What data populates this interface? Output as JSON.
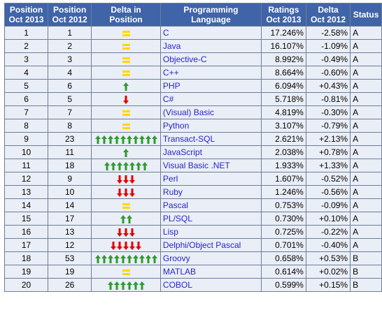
{
  "headers": {
    "pos2013": [
      "Position",
      "Oct 2013"
    ],
    "pos2012": [
      "Position",
      "Oct 2012"
    ],
    "deltapos": "Delta in Position",
    "lang": "Programming Language",
    "ratings": [
      "Ratings",
      "Oct 2013"
    ],
    "delta": [
      "Delta",
      "Oct 2012"
    ],
    "status": "Status"
  },
  "colors": {
    "up": "#2f9a2f",
    "down": "#e00000",
    "equal": "#ffd800",
    "header_bg": "#3f64a7",
    "link": "#2626c9"
  },
  "rows": [
    {
      "pos2013": "1",
      "pos2012": "1",
      "change": "equal",
      "count": 0,
      "lang": "C",
      "rating": "17.246%",
      "delta": "-2.58%",
      "status": "A"
    },
    {
      "pos2013": "2",
      "pos2012": "2",
      "change": "equal",
      "count": 0,
      "lang": "Java",
      "rating": "16.107%",
      "delta": "-1.09%",
      "status": "A"
    },
    {
      "pos2013": "3",
      "pos2012": "3",
      "change": "equal",
      "count": 0,
      "lang": "Objective-C",
      "rating": "8.992%",
      "delta": "-0.49%",
      "status": "A"
    },
    {
      "pos2013": "4",
      "pos2012": "4",
      "change": "equal",
      "count": 0,
      "lang": "C++",
      "rating": "8.664%",
      "delta": "-0.60%",
      "status": "A"
    },
    {
      "pos2013": "5",
      "pos2012": "6",
      "change": "up",
      "count": 1,
      "lang": "PHP",
      "rating": "6.094%",
      "delta": "+0.43%",
      "status": "A"
    },
    {
      "pos2013": "6",
      "pos2012": "5",
      "change": "down",
      "count": 1,
      "lang": "C#",
      "rating": "5.718%",
      "delta": "-0.81%",
      "status": "A"
    },
    {
      "pos2013": "7",
      "pos2012": "7",
      "change": "equal",
      "count": 0,
      "lang": "(Visual) Basic",
      "rating": "4.819%",
      "delta": "-0.30%",
      "status": "A"
    },
    {
      "pos2013": "8",
      "pos2012": "8",
      "change": "equal",
      "count": 0,
      "lang": "Python",
      "rating": "3.107%",
      "delta": "-0.79%",
      "status": "A"
    },
    {
      "pos2013": "9",
      "pos2012": "23",
      "change": "up",
      "count": 10,
      "lang": "Transact-SQL",
      "rating": "2.621%",
      "delta": "+2.13%",
      "status": "A"
    },
    {
      "pos2013": "10",
      "pos2012": "11",
      "change": "up",
      "count": 1,
      "lang": "JavaScript",
      "rating": "2.038%",
      "delta": "+0.78%",
      "status": "A"
    },
    {
      "pos2013": "11",
      "pos2012": "18",
      "change": "up",
      "count": 7,
      "lang": "Visual Basic .NET",
      "rating": "1.933%",
      "delta": "+1.33%",
      "status": "A"
    },
    {
      "pos2013": "12",
      "pos2012": "9",
      "change": "down",
      "count": 3,
      "lang": "Perl",
      "rating": "1.607%",
      "delta": "-0.52%",
      "status": "A"
    },
    {
      "pos2013": "13",
      "pos2012": "10",
      "change": "down",
      "count": 3,
      "lang": "Ruby",
      "rating": "1.246%",
      "delta": "-0.56%",
      "status": "A"
    },
    {
      "pos2013": "14",
      "pos2012": "14",
      "change": "equal",
      "count": 0,
      "lang": "Pascal",
      "rating": "0.753%",
      "delta": "-0.09%",
      "status": "A"
    },
    {
      "pos2013": "15",
      "pos2012": "17",
      "change": "up",
      "count": 2,
      "lang": "PL/SQL",
      "rating": "0.730%",
      "delta": "+0.10%",
      "status": "A"
    },
    {
      "pos2013": "16",
      "pos2012": "13",
      "change": "down",
      "count": 3,
      "lang": "Lisp",
      "rating": "0.725%",
      "delta": "-0.22%",
      "status": "A"
    },
    {
      "pos2013": "17",
      "pos2012": "12",
      "change": "down",
      "count": 5,
      "lang": "Delphi/Object Pascal",
      "rating": "0.701%",
      "delta": "-0.40%",
      "status": "A"
    },
    {
      "pos2013": "18",
      "pos2012": "53",
      "change": "up",
      "count": 10,
      "lang": "Groovy",
      "rating": "0.658%",
      "delta": "+0.53%",
      "status": "B"
    },
    {
      "pos2013": "19",
      "pos2012": "19",
      "change": "equal",
      "count": 0,
      "lang": "MATLAB",
      "rating": "0.614%",
      "delta": "+0.02%",
      "status": "B"
    },
    {
      "pos2013": "20",
      "pos2012": "26",
      "change": "up",
      "count": 6,
      "lang": "COBOL",
      "rating": "0.599%",
      "delta": "+0.15%",
      "status": "B"
    }
  ]
}
